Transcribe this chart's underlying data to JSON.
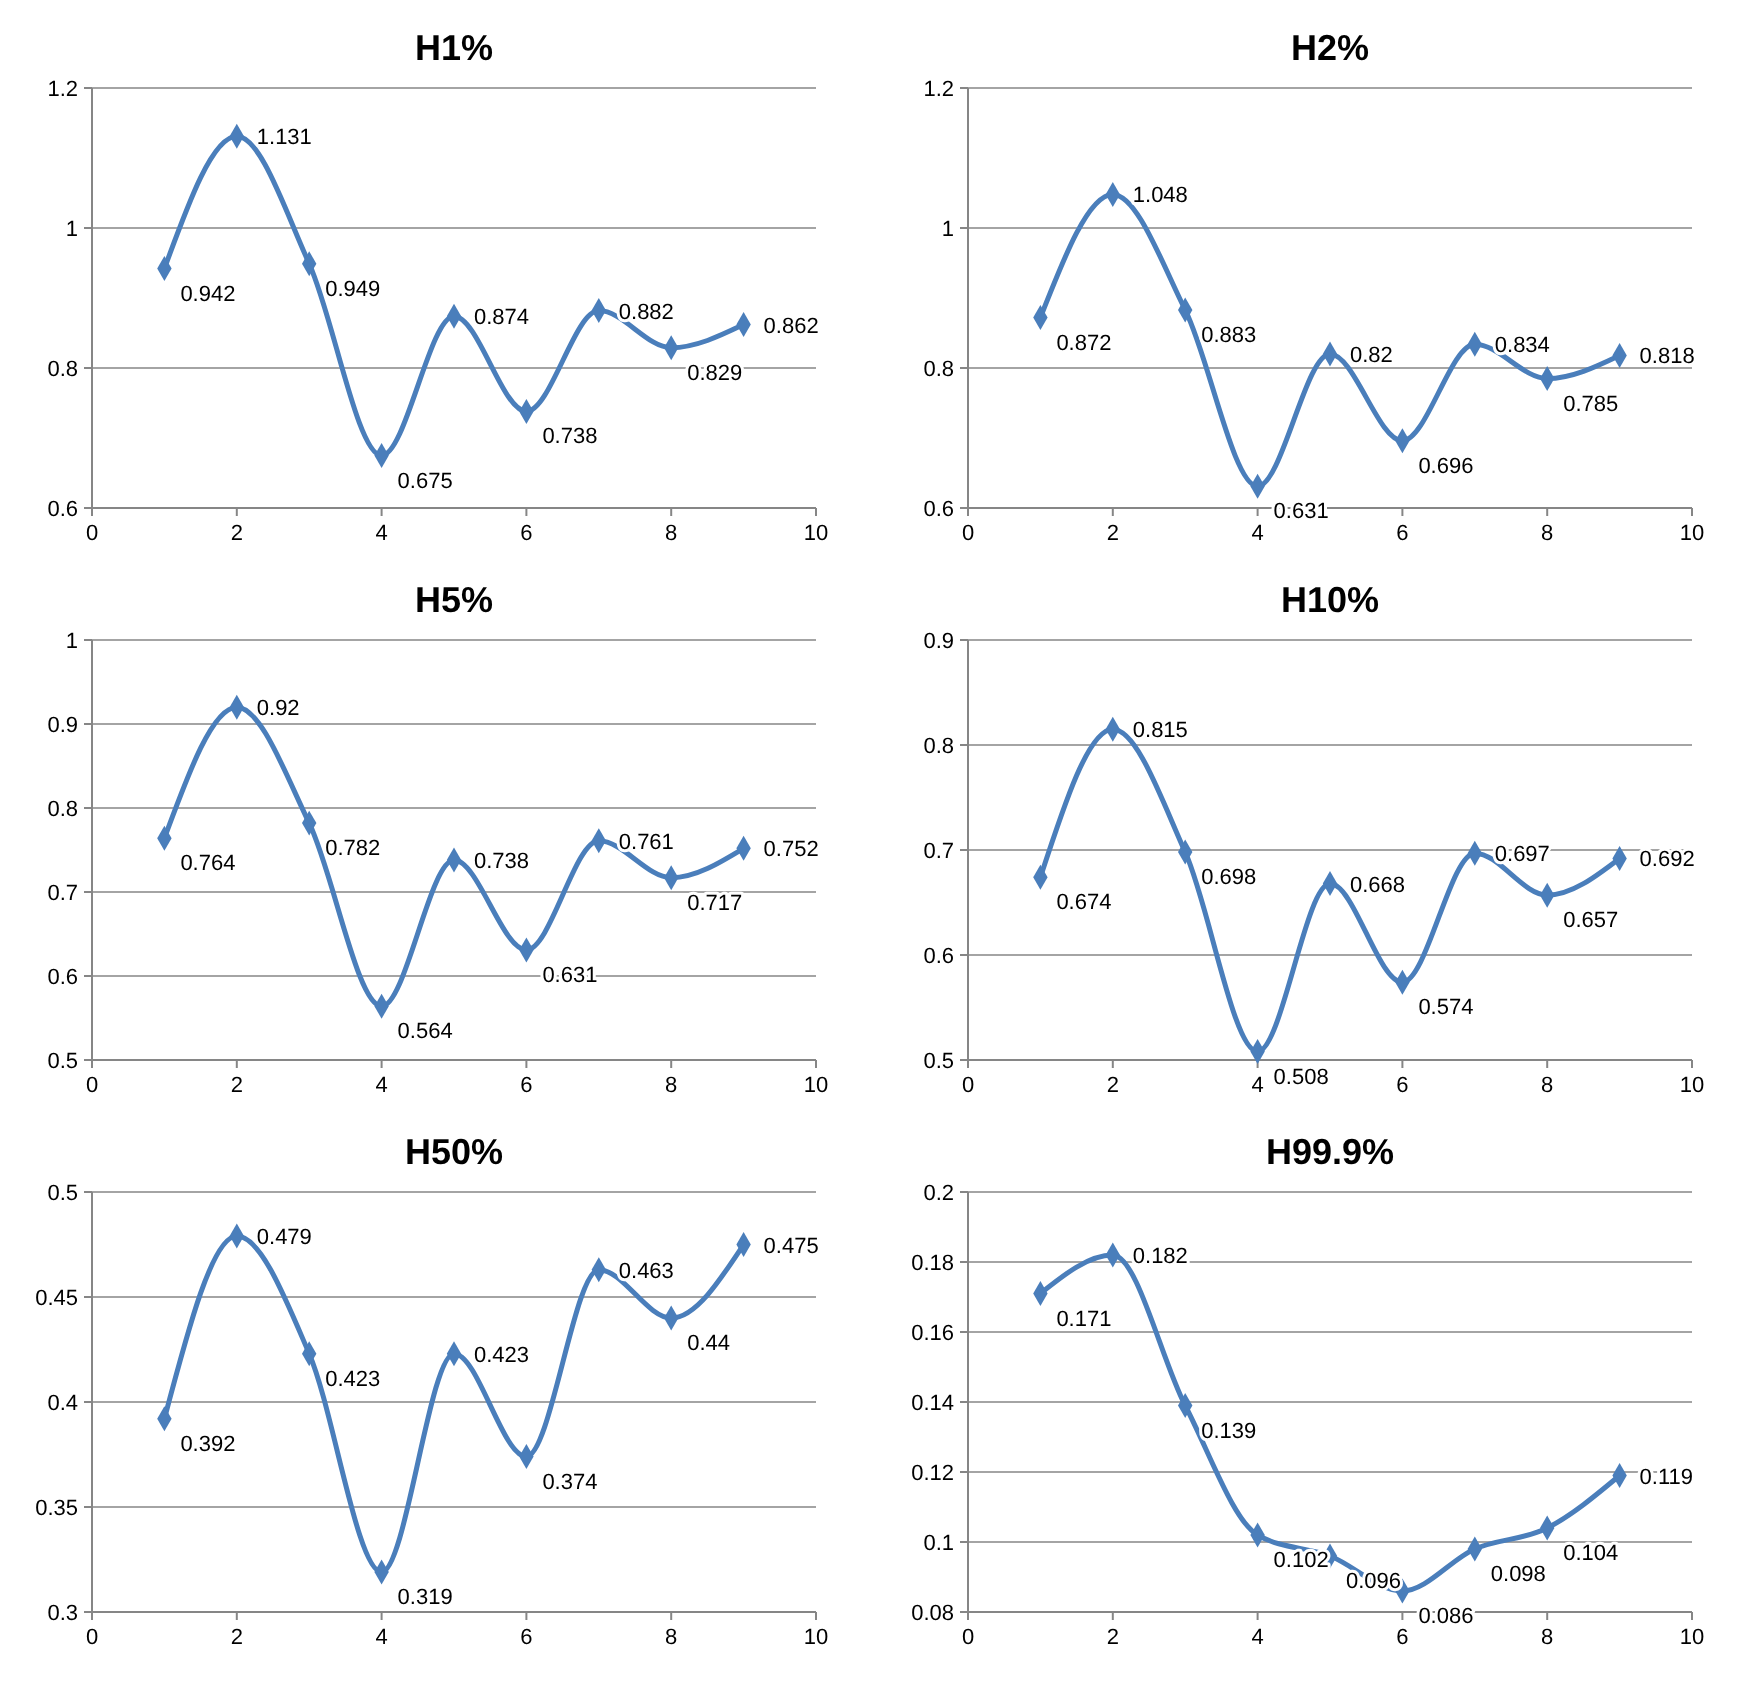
{
  "chart_data": [
    {
      "type": "line",
      "title": "H1%",
      "x": [
        1,
        2,
        3,
        4,
        5,
        6,
        7,
        8,
        9
      ],
      "values": [
        0.942,
        1.131,
        0.949,
        0.675,
        0.874,
        0.738,
        0.882,
        0.829,
        0.862
      ],
      "color": "#4a7ebb",
      "xlim": [
        0,
        10
      ],
      "xticks": [
        0,
        2,
        4,
        6,
        8,
        10
      ],
      "ylim": [
        0.6,
        1.2
      ],
      "yticks": [
        0.6,
        0.8,
        1,
        1.2
      ],
      "grid": "y",
      "marker": "diamond",
      "data_labels": true
    },
    {
      "type": "line",
      "title": "H2%",
      "x": [
        1,
        2,
        3,
        4,
        5,
        6,
        7,
        8,
        9
      ],
      "values": [
        0.872,
        1.048,
        0.883,
        0.631,
        0.82,
        0.696,
        0.834,
        0.785,
        0.818
      ],
      "color": "#4a7ebb",
      "xlim": [
        0,
        10
      ],
      "xticks": [
        0,
        2,
        4,
        6,
        8,
        10
      ],
      "ylim": [
        0.6,
        1.2
      ],
      "yticks": [
        0.6,
        0.8,
        1,
        1.2
      ],
      "grid": "y",
      "marker": "diamond",
      "data_labels": true
    },
    {
      "type": "line",
      "title": "H5%",
      "x": [
        1,
        2,
        3,
        4,
        5,
        6,
        7,
        8,
        9
      ],
      "values": [
        0.764,
        0.92,
        0.782,
        0.564,
        0.738,
        0.631,
        0.761,
        0.717,
        0.752
      ],
      "color": "#4a7ebb",
      "xlim": [
        0,
        10
      ],
      "xticks": [
        0,
        2,
        4,
        6,
        8,
        10
      ],
      "ylim": [
        0.5,
        1
      ],
      "yticks": [
        0.5,
        0.6,
        0.7,
        0.8,
        0.9,
        1
      ],
      "grid": "y",
      "marker": "diamond",
      "data_labels": true
    },
    {
      "type": "line",
      "title": "H10%",
      "x": [
        1,
        2,
        3,
        4,
        5,
        6,
        7,
        8,
        9
      ],
      "values": [
        0.674,
        0.815,
        0.698,
        0.508,
        0.668,
        0.574,
        0.697,
        0.657,
        0.692
      ],
      "color": "#4a7ebb",
      "xlim": [
        0,
        10
      ],
      "xticks": [
        0,
        2,
        4,
        6,
        8,
        10
      ],
      "ylim": [
        0.5,
        0.9
      ],
      "yticks": [
        0.5,
        0.6,
        0.7,
        0.8,
        0.9
      ],
      "grid": "y",
      "marker": "diamond",
      "data_labels": true
    },
    {
      "type": "line",
      "title": "H50%",
      "x": [
        1,
        2,
        3,
        4,
        5,
        6,
        7,
        8,
        9
      ],
      "values": [
        0.392,
        0.479,
        0.423,
        0.319,
        0.423,
        0.374,
        0.463,
        0.44,
        0.475
      ],
      "color": "#4a7ebb",
      "xlim": [
        0,
        10
      ],
      "xticks": [
        0,
        2,
        4,
        6,
        8,
        10
      ],
      "ylim": [
        0.3,
        0.5
      ],
      "yticks": [
        0.3,
        0.35,
        0.4,
        0.45,
        0.5
      ],
      "grid": "y",
      "marker": "diamond",
      "data_labels": true
    },
    {
      "type": "line",
      "title": "H99.9%",
      "x": [
        1,
        2,
        3,
        4,
        5,
        6,
        7,
        8,
        9
      ],
      "values": [
        0.171,
        0.182,
        0.139,
        0.102,
        0.096,
        0.086,
        0.098,
        0.104,
        0.119
      ],
      "color": "#4a7ebb",
      "xlim": [
        0,
        10
      ],
      "xticks": [
        0,
        2,
        4,
        6,
        8,
        10
      ],
      "ylim": [
        0.08,
        0.2
      ],
      "yticks": [
        0.08,
        0.1,
        0.12,
        0.14,
        0.16,
        0.18,
        0.2
      ],
      "grid": "y",
      "marker": "diamond",
      "data_labels": true
    }
  ]
}
